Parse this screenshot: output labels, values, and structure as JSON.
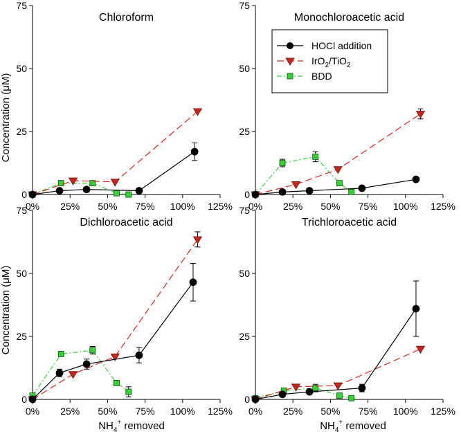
{
  "legend": {
    "hocl": "HOCl addition",
    "iro2_main": "IrO",
    "iro2_sub1": "2",
    "iro2_mid": "/TiO",
    "iro2_sub2": "2",
    "bdd": "BDD"
  },
  "axis_text": {
    "ylabel_main": "Concentration (",
    "ylabel_mu": "μ",
    "ylabel_tail": "M)",
    "xlabel_main": "NH",
    "xlabel_sub": "4",
    "xlabel_sup": "+",
    "xlabel_tail": " removed"
  },
  "chart_data": [
    {
      "type": "line",
      "title": "Chloroform",
      "xlabel": "NH4+ removed",
      "ylabel": "Concentration (μM)",
      "xlim": [
        0,
        125
      ],
      "ylim": [
        0,
        75
      ],
      "x_ticks": [
        "0%",
        "25%",
        "50%",
        "75%",
        "100%",
        "125%"
      ],
      "y_ticks": [
        "0",
        "25",
        "50",
        "75"
      ],
      "series": [
        {
          "name": "HOCl addition",
          "x": [
            0,
            18,
            36,
            71,
            108
          ],
          "y": [
            0,
            1.5,
            2,
            1.5,
            17
          ],
          "err": [
            0,
            0,
            0,
            0,
            3.5
          ]
        },
        {
          "name": "IrO2/TiO2",
          "x": [
            0,
            27,
            55,
            110
          ],
          "y": [
            0,
            5.5,
            5,
            33
          ],
          "err": [
            0,
            0,
            0,
            0
          ]
        },
        {
          "name": "BDD",
          "x": [
            0,
            19,
            40,
            56,
            64
          ],
          "y": [
            0,
            4.5,
            4.5,
            0.5,
            0
          ],
          "err": [
            0,
            0,
            0,
            0,
            0
          ]
        }
      ]
    },
    {
      "type": "line",
      "title": "Monochloroacetic acid",
      "xlabel": "NH4+ removed",
      "ylabel": "Concentration (μM)",
      "xlim": [
        0,
        125
      ],
      "ylim": [
        0,
        75
      ],
      "x_ticks": [
        "0%",
        "25%",
        "50%",
        "75%",
        "100%",
        "125%"
      ],
      "y_ticks": [
        "0",
        "25",
        "50",
        "75"
      ],
      "series": [
        {
          "name": "HOCl addition",
          "x": [
            0,
            18,
            36,
            71,
            107
          ],
          "y": [
            0,
            1,
            1.5,
            2.5,
            6
          ],
          "err": [
            0,
            0,
            0,
            0,
            0
          ]
        },
        {
          "name": "IrO2/TiO2",
          "x": [
            0,
            27,
            55,
            110
          ],
          "y": [
            0,
            4,
            10,
            32
          ],
          "err": [
            0,
            0,
            0,
            2
          ]
        },
        {
          "name": "BDD",
          "x": [
            0,
            18,
            40,
            56,
            64
          ],
          "y": [
            0,
            12.5,
            15,
            4.5,
            1
          ],
          "err": [
            0,
            1.5,
            2,
            0,
            0
          ]
        }
      ]
    },
    {
      "type": "line",
      "title": "Dichloroacetic acid",
      "xlabel": "NH4+ removed",
      "ylabel": "Concentration (μM)",
      "xlim": [
        0,
        125
      ],
      "ylim": [
        0,
        75
      ],
      "x_ticks": [
        "0%",
        "25%",
        "50%",
        "75%",
        "100%",
        "125%"
      ],
      "y_ticks": [
        "0",
        "25",
        "50",
        "75"
      ],
      "series": [
        {
          "name": "HOCl addition",
          "x": [
            0,
            18,
            36,
            71,
            107
          ],
          "y": [
            0,
            10.5,
            14,
            17.5,
            46.5
          ],
          "err": [
            0,
            1.5,
            2,
            3,
            7.5
          ]
        },
        {
          "name": "IrO2/TiO2",
          "x": [
            0,
            27,
            55,
            110
          ],
          "y": [
            0,
            10,
            17,
            63.5
          ],
          "err": [
            0,
            0,
            0,
            3
          ]
        },
        {
          "name": "BDD",
          "x": [
            0,
            19,
            40,
            56,
            64
          ],
          "y": [
            1.5,
            18,
            19.5,
            6.5,
            3
          ],
          "err": [
            0,
            0,
            1.5,
            0,
            2
          ]
        }
      ]
    },
    {
      "type": "line",
      "title": "Trichloroacetic acid",
      "xlabel": "NH4+ removed",
      "ylabel": "Concentration (μM)",
      "xlim": [
        0,
        125
      ],
      "ylim": [
        0,
        75
      ],
      "x_ticks": [
        "0%",
        "25%",
        "50%",
        "75%",
        "100%",
        "125%"
      ],
      "y_ticks": [
        "0",
        "25",
        "50",
        "75"
      ],
      "series": [
        {
          "name": "HOCl addition",
          "x": [
            0,
            18,
            36,
            71,
            107
          ],
          "y": [
            0,
            2,
            3,
            4.5,
            36
          ],
          "err": [
            0,
            0,
            0,
            1.5,
            11
          ]
        },
        {
          "name": "IrO2/TiO2",
          "x": [
            0,
            27,
            55,
            110
          ],
          "y": [
            0,
            5,
            5.5,
            20
          ],
          "err": [
            0,
            0,
            0,
            0
          ]
        },
        {
          "name": "BDD",
          "x": [
            0,
            19,
            40,
            56,
            64
          ],
          "y": [
            0.5,
            3.5,
            4.5,
            1.5,
            0.5
          ],
          "err": [
            0,
            0,
            1.5,
            0,
            0
          ]
        }
      ]
    }
  ]
}
